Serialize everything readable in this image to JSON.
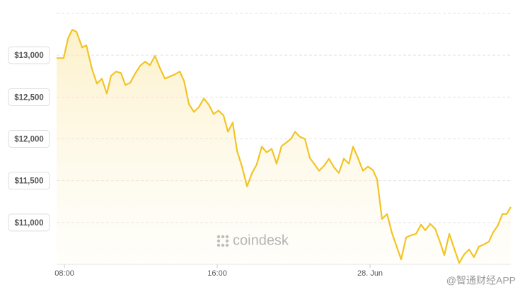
{
  "chart_data": {
    "type": "area-line",
    "color": "#f2c424",
    "watermark": "coindesk",
    "source_watermark": "@智通财经APP",
    "xlim": [
      7.59,
      31.37
    ],
    "ylim": [
      10500,
      13500
    ],
    "xticks": [
      {
        "value": 8,
        "label": "08:00"
      },
      {
        "value": 16,
        "label": "16:00"
      },
      {
        "value": 24,
        "label": "28. Jun"
      }
    ],
    "yticks": [
      {
        "value": 11000,
        "label": "$11,000"
      },
      {
        "value": 11500,
        "label": "$11,500"
      },
      {
        "value": 12000,
        "label": "$12,000"
      },
      {
        "value": 12500,
        "label": "$12,500"
      },
      {
        "value": 13000,
        "label": "$13,000"
      }
    ],
    "grid": true,
    "x": [
      7.59,
      7.96,
      8.19,
      8.41,
      8.63,
      8.93,
      9.15,
      9.44,
      9.7,
      9.96,
      10.22,
      10.44,
      10.7,
      10.96,
      11.19,
      11.44,
      11.7,
      11.96,
      12.22,
      12.48,
      12.74,
      13.0,
      13.26,
      13.52,
      13.78,
      14.04,
      14.26,
      14.52,
      14.78,
      15.04,
      15.3,
      15.56,
      15.81,
      16.07,
      16.33,
      16.56,
      16.81,
      17.04,
      17.3,
      17.56,
      17.81,
      18.07,
      18.33,
      18.59,
      18.85,
      19.11,
      19.37,
      19.63,
      19.89,
      20.07,
      20.33,
      20.59,
      20.85,
      21.07,
      21.33,
      21.59,
      21.85,
      22.11,
      22.37,
      22.63,
      22.89,
      23.11,
      23.37,
      23.63,
      23.89,
      24.15,
      24.37,
      24.63,
      24.89,
      25.15,
      25.41,
      25.63,
      25.89,
      26.15,
      26.41,
      26.67,
      26.89,
      27.15,
      27.41,
      27.67,
      27.89,
      28.15,
      28.41,
      28.67,
      28.93,
      29.19,
      29.44,
      29.7,
      29.96,
      30.22,
      30.44,
      30.7,
      30.93,
      31.15,
      31.37
    ],
    "values": [
      12966,
      12966,
      13203,
      13305,
      13280,
      13093,
      13119,
      12839,
      12661,
      12720,
      12542,
      12754,
      12805,
      12788,
      12644,
      12669,
      12780,
      12873,
      12924,
      12881,
      12992,
      12847,
      12720,
      12746,
      12771,
      12805,
      12695,
      12415,
      12322,
      12381,
      12483,
      12407,
      12297,
      12339,
      12280,
      12085,
      12195,
      11856,
      11669,
      11432,
      11585,
      11695,
      11907,
      11839,
      11881,
      11703,
      11915,
      11958,
      12008,
      12085,
      12025,
      12000,
      11771,
      11703,
      11619,
      11678,
      11763,
      11661,
      11593,
      11763,
      11703,
      11907,
      11771,
      11619,
      11669,
      11627,
      11517,
      11042,
      11102,
      10873,
      10703,
      10559,
      10822,
      10847,
      10864,
      10975,
      10907,
      10983,
      10924,
      10763,
      10610,
      10864,
      10686,
      10517,
      10619,
      10678,
      10585,
      10712,
      10737,
      10771,
      10881,
      10966,
      11102,
      11102,
      11186
    ]
  }
}
